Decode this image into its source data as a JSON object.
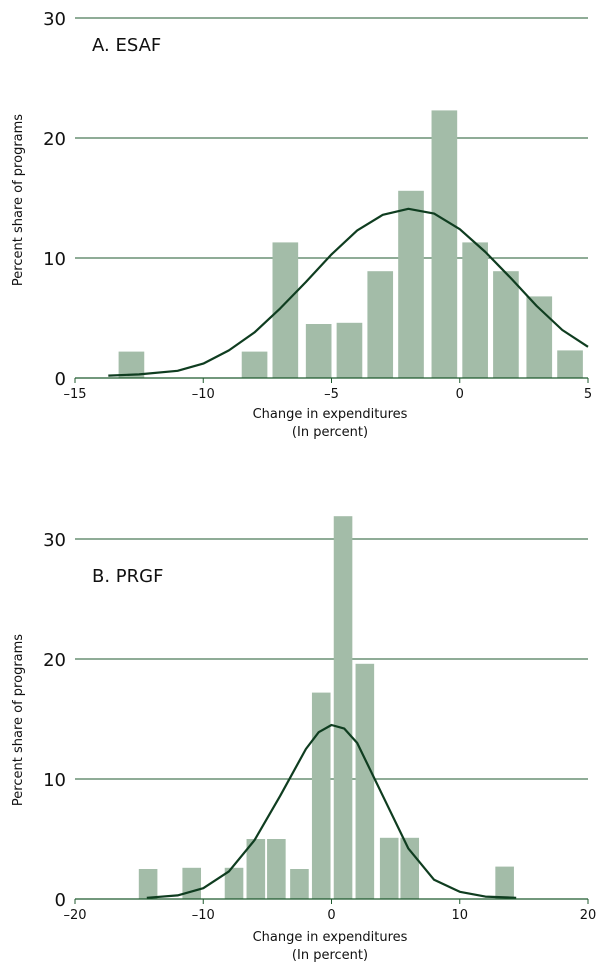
{
  "colors": {
    "bar": "#a3bca8",
    "curve": "#0f3d20",
    "grid": "#1f5a2f",
    "text": "#111111"
  },
  "chart_data": [
    {
      "type": "bar",
      "title": "A. ESAF",
      "xlabel": "Change in expenditures",
      "xlabel_sub": "(In percent)",
      "ylabel": "Percent share of programs",
      "xlim": [
        -15,
        5
      ],
      "ylim": [
        0,
        30
      ],
      "x_ticks": [
        -15,
        -10,
        -5,
        0,
        5
      ],
      "x_tick_labels": [
        "–15",
        "–10",
        "–5",
        "0",
        "5"
      ],
      "y_ticks": [
        0,
        10,
        20,
        30
      ],
      "y_tick_labels": [
        "0",
        "10",
        "20",
        "30"
      ],
      "grid": true,
      "bar_width": 1.0,
      "bars": [
        {
          "x": -12.8,
          "value": 2.2
        },
        {
          "x": -8.0,
          "value": 2.2
        },
        {
          "x": -6.8,
          "value": 11.3
        },
        {
          "x": -5.5,
          "value": 4.5
        },
        {
          "x": -4.3,
          "value": 4.6
        },
        {
          "x": -3.1,
          "value": 8.9
        },
        {
          "x": -1.9,
          "value": 15.6
        },
        {
          "x": -0.6,
          "value": 22.3
        },
        {
          "x": 0.6,
          "value": 11.3
        },
        {
          "x": 1.8,
          "value": 8.9
        },
        {
          "x": 3.1,
          "value": 6.8
        },
        {
          "x": 4.3,
          "value": 2.3
        }
      ],
      "curve": [
        {
          "x": -13.7,
          "y": 0.2
        },
        {
          "x": -12.5,
          "y": 0.3
        },
        {
          "x": -11.0,
          "y": 0.6
        },
        {
          "x": -10.0,
          "y": 1.2
        },
        {
          "x": -9.0,
          "y": 2.3
        },
        {
          "x": -8.0,
          "y": 3.8
        },
        {
          "x": -7.0,
          "y": 5.8
        },
        {
          "x": -6.0,
          "y": 8.0
        },
        {
          "x": -5.0,
          "y": 10.3
        },
        {
          "x": -4.0,
          "y": 12.3
        },
        {
          "x": -3.0,
          "y": 13.6
        },
        {
          "x": -2.0,
          "y": 14.1
        },
        {
          "x": -1.0,
          "y": 13.7
        },
        {
          "x": 0.0,
          "y": 12.4
        },
        {
          "x": 1.0,
          "y": 10.5
        },
        {
          "x": 2.0,
          "y": 8.3
        },
        {
          "x": 3.0,
          "y": 6.0
        },
        {
          "x": 4.0,
          "y": 4.0
        },
        {
          "x": 5.0,
          "y": 2.6
        }
      ]
    },
    {
      "type": "bar",
      "title": "B. PRGF",
      "xlabel": "Change in expenditures",
      "xlabel_sub": "(In percent)",
      "ylabel": "Percent share of programs",
      "xlim": [
        -20,
        20
      ],
      "ylim": [
        0,
        30
      ],
      "x_ticks": [
        -20,
        -10,
        0,
        10,
        20
      ],
      "x_tick_labels": [
        "–20",
        "–10",
        "0",
        "10",
        "20"
      ],
      "y_ticks": [
        0,
        10,
        20,
        30
      ],
      "y_tick_labels": [
        "0",
        "10",
        "20",
        "30"
      ],
      "grid": true,
      "bar_width": 1.45,
      "bars": [
        {
          "x": -14.3,
          "value": 2.5
        },
        {
          "x": -10.9,
          "value": 2.6
        },
        {
          "x": -7.6,
          "value": 2.6
        },
        {
          "x": -5.9,
          "value": 5.0
        },
        {
          "x": -4.3,
          "value": 5.0
        },
        {
          "x": -2.5,
          "value": 2.5
        },
        {
          "x": -0.8,
          "value": 17.2
        },
        {
          "x": 0.9,
          "value": 31.9
        },
        {
          "x": 2.6,
          "value": 19.6
        },
        {
          "x": 4.5,
          "value": 5.1
        },
        {
          "x": 6.1,
          "value": 5.1
        },
        {
          "x": 13.5,
          "value": 2.7
        }
      ],
      "curve": [
        {
          "x": -14.4,
          "y": 0.1
        },
        {
          "x": -12.0,
          "y": 0.3
        },
        {
          "x": -10.0,
          "y": 0.9
        },
        {
          "x": -8.0,
          "y": 2.3
        },
        {
          "x": -6.0,
          "y": 4.9
        },
        {
          "x": -4.0,
          "y": 8.6
        },
        {
          "x": -2.0,
          "y": 12.5
        },
        {
          "x": -1.0,
          "y": 13.9
        },
        {
          "x": 0.0,
          "y": 14.5
        },
        {
          "x": 1.0,
          "y": 14.2
        },
        {
          "x": 2.0,
          "y": 13.0
        },
        {
          "x": 4.0,
          "y": 8.6
        },
        {
          "x": 6.0,
          "y": 4.2
        },
        {
          "x": 8.0,
          "y": 1.6
        },
        {
          "x": 10.0,
          "y": 0.6
        },
        {
          "x": 12.0,
          "y": 0.2
        },
        {
          "x": 14.4,
          "y": 0.1
        }
      ]
    }
  ]
}
